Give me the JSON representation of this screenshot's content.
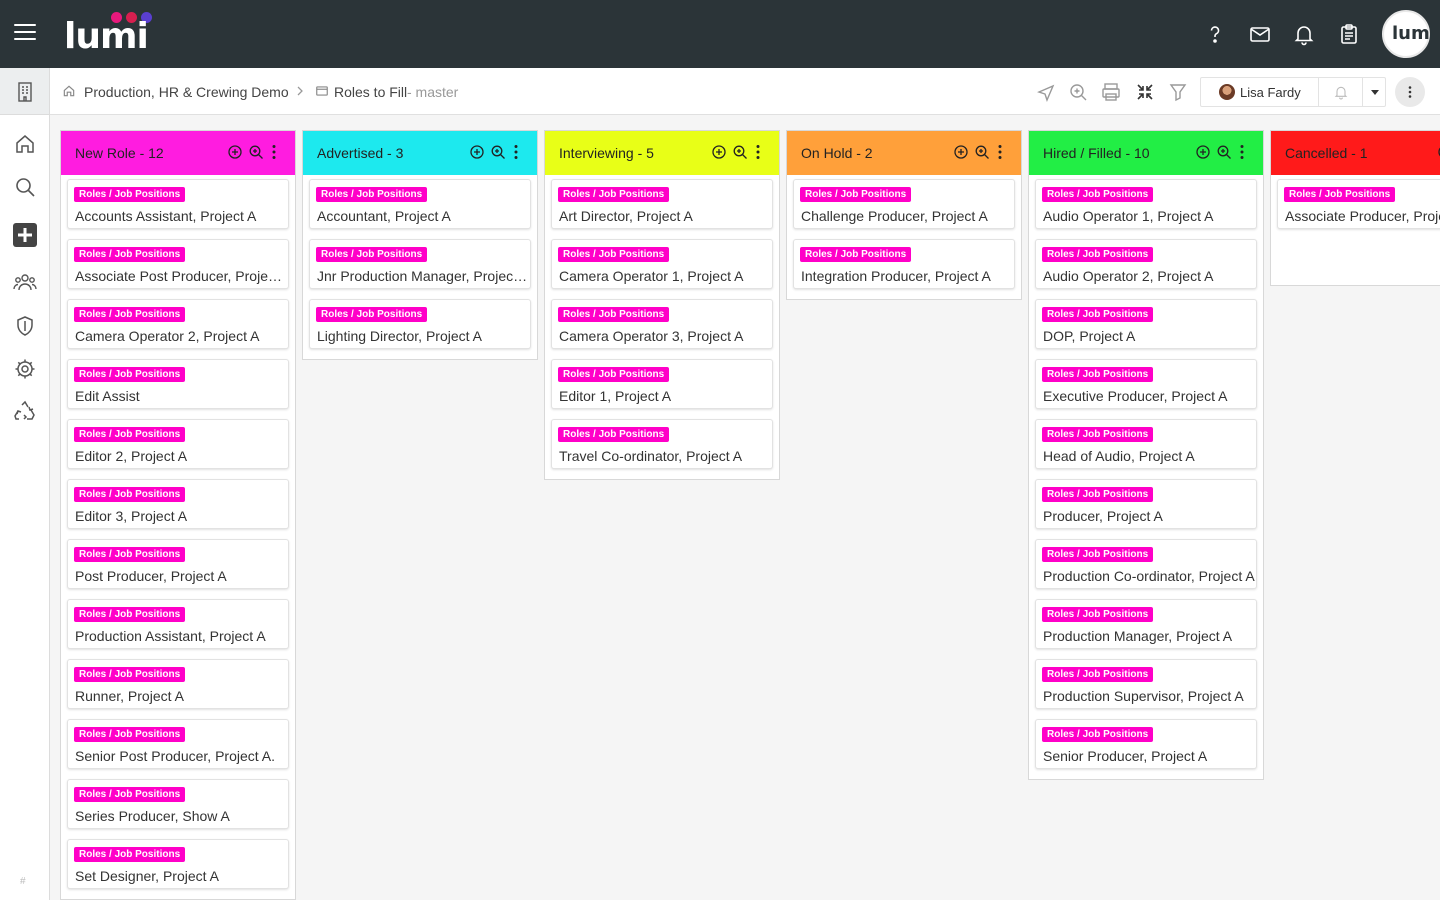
{
  "app": {
    "logo_text": "lumi",
    "logo_dot_colors": [
      "#e8197d",
      "#d61f4f",
      "#5a3fd1"
    ],
    "avatar_logo_text": "lumi"
  },
  "topbar": {
    "icons": [
      "help-icon",
      "mail-icon",
      "bell-icon",
      "clipboard-icon"
    ]
  },
  "sidebar": {
    "items": [
      "building-icon",
      "home-icon",
      "search-icon",
      "add-icon",
      "people-icon",
      "shield-icon",
      "gear-icon",
      "recycle-icon"
    ],
    "footer": "#"
  },
  "breadcrumb": {
    "workspace": "Production, HR & Crewing Demo",
    "board": "Roles to Fill",
    "branch": "- master"
  },
  "toolbar": {
    "icons": [
      "send-icon",
      "zoom-icon",
      "print-icon",
      "collapse-icon",
      "filter-icon"
    ],
    "user_name": "Lisa Fardy"
  },
  "tag_label": "Roles / Job Positions",
  "tag_color": "#ff00c8",
  "columns": [
    {
      "title": "New Role - 12",
      "color": "#ff1ce0",
      "cards": [
        "Accounts Assistant, Project A",
        "Associate Post Producer, Project A",
        "Camera Operator 2, Project A",
        "Edit Assist",
        "Editor 2, Project A",
        "Editor 3, Project A",
        "Post Producer, Project A",
        "Production Assistant, Project A",
        "Runner, Project A",
        "Senior Post Producer, Project A.",
        "Series Producer, Show A",
        "Set Designer, Project A"
      ]
    },
    {
      "title": "Advertised - 3",
      "color": "#1de9ee",
      "cards": [
        "Accountant, Project A",
        "Jnr Production Manager, Project A",
        "Lighting Director, Project A"
      ]
    },
    {
      "title": "Interviewing - 5",
      "color": "#e8ff17",
      "cards": [
        "Art Director, Project A",
        "Camera Operator 1, Project A",
        "Camera Operator 3, Project A",
        "Editor 1, Project A",
        "Travel Co-ordinator, Project A"
      ]
    },
    {
      "title": "On Hold - 2",
      "color": "#ffa03a",
      "cards": [
        "Challenge Producer, Project A",
        "Integration Producer, Project A"
      ]
    },
    {
      "title": "Hired / Filled - 10",
      "color": "#22ee45",
      "cards": [
        "Audio Operator 1, Project A",
        "Audio Operator 2, Project A",
        "DOP, Project A",
        "Executive Producer, Project A",
        "Head of Audio, Project A",
        "Producer, Project A",
        "Production Co-ordinator, Project A",
        "Production Manager, Project A",
        "Production Supervisor, Project A",
        "Senior Producer, Project A"
      ]
    },
    {
      "title": "Cancelled - 1",
      "color": "#ff1a1a",
      "cards": [
        "Associate Producer, Project A"
      ]
    }
  ]
}
